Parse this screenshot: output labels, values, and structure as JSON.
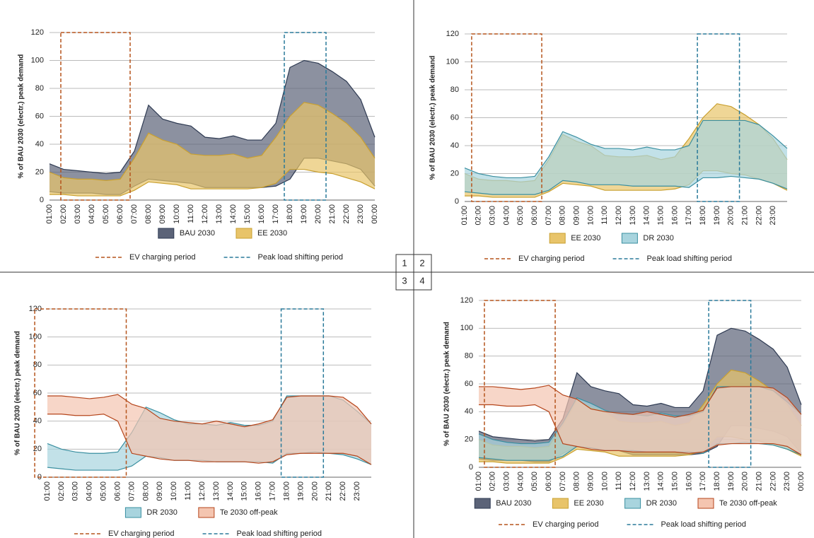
{
  "panel_labels": [
    "1",
    "2",
    "3",
    "4"
  ],
  "chart_data": [
    {
      "type": "area",
      "y_label": "% of BAU 2030 (electr.) peak demand",
      "categories": [
        "01:00",
        "02:00",
        "03:00",
        "04:00",
        "05:00",
        "06:00",
        "07:00",
        "08:00",
        "09:00",
        "10:00",
        "11:00",
        "12:00",
        "13:00",
        "14:00",
        "15:00",
        "16:00",
        "17:00",
        "18:00",
        "19:00",
        "20:00",
        "21:00",
        "22:00",
        "23:00",
        "00:00"
      ],
      "ylim": [
        0,
        120
      ],
      "yticks": [
        0,
        20,
        40,
        60,
        80,
        100,
        120
      ],
      "grid": true,
      "series": [
        {
          "name": "BAU 2030",
          "color": "#5b6378",
          "line_color": "#2e3a52",
          "values": [
            26,
            22,
            21,
            20,
            19,
            20,
            35,
            68,
            58,
            55,
            53,
            45,
            44,
            46,
            43,
            43,
            55,
            95,
            100,
            98,
            92,
            85,
            72,
            45
          ],
          "lower": [
            6,
            5,
            5,
            5,
            4,
            4,
            10,
            15,
            14,
            13,
            12,
            9,
            9,
            9,
            9,
            9,
            10,
            15,
            30,
            30,
            28,
            26,
            22,
            10
          ]
        },
        {
          "name": "EE 2030",
          "color": "#e8c46a",
          "line_color": "#c9a030",
          "values": [
            20,
            16,
            15,
            15,
            14,
            15,
            30,
            48,
            43,
            40,
            33,
            32,
            32,
            33,
            30,
            32,
            45,
            60,
            70,
            68,
            62,
            55,
            45,
            30
          ],
          "lower": [
            4,
            4,
            3,
            3,
            3,
            3,
            7,
            13,
            12,
            11,
            8,
            8,
            8,
            8,
            8,
            9,
            12,
            22,
            22,
            20,
            19,
            16,
            13,
            8
          ]
        }
      ],
      "periods": [
        {
          "name": "EV charging period",
          "color": "#b5541c",
          "from": 0.8,
          "to": 5.7
        },
        {
          "name": "Peak load shifting period",
          "color": "#2a7a9a",
          "from": 16.6,
          "to": 19.55
        }
      ]
    },
    {
      "type": "area",
      "y_label": "% of BAU 2030 (electr.) peak demand",
      "categories": [
        "01:00",
        "02:00",
        "03:00",
        "04:00",
        "05:00",
        "06:00",
        "07:00",
        "08:00",
        "09:00",
        "10:00",
        "11:00",
        "12:00",
        "13:00",
        "14:00",
        "15:00",
        "16:00",
        "17:00",
        "18:00",
        "19:00",
        "20:00",
        "21:00",
        "22:00",
        "23:00",
        null
      ],
      "ylim": [
        0,
        120
      ],
      "yticks": [
        0,
        20,
        40,
        60,
        80,
        100,
        120
      ],
      "grid": true,
      "series": [
        {
          "name": "EE 2030",
          "color": "#e8c46a",
          "line_color": "#c9a030",
          "values": [
            20,
            16,
            15,
            15,
            14,
            15,
            30,
            48,
            43,
            40,
            33,
            32,
            32,
            33,
            30,
            32,
            45,
            60,
            70,
            68,
            62,
            55,
            45,
            30
          ],
          "lower": [
            4,
            4,
            3,
            3,
            3,
            3,
            7,
            13,
            12,
            11,
            8,
            8,
            8,
            8,
            8,
            9,
            12,
            22,
            22,
            20,
            19,
            16,
            13,
            8
          ]
        },
        {
          "name": "DR 2030",
          "color": "#a8d4de",
          "line_color": "#3a8fa0",
          "values": [
            24,
            20,
            18,
            17,
            17,
            18,
            32,
            50,
            46,
            41,
            38,
            38,
            37,
            39,
            37,
            37,
            40,
            58,
            58,
            58,
            58,
            55,
            47,
            38
          ],
          "lower": [
            7,
            6,
            5,
            5,
            5,
            5,
            8,
            15,
            14,
            12,
            12,
            12,
            11,
            11,
            11,
            11,
            10,
            17,
            17,
            18,
            17,
            16,
            13,
            9
          ]
        }
      ],
      "periods": [
        {
          "name": "EV charging period",
          "color": "#b5541c",
          "from": 0.5,
          "to": 5.5
        },
        {
          "name": "Peak load shifting period",
          "color": "#2a7a9a",
          "from": 16.6,
          "to": 19.6
        }
      ]
    },
    {
      "type": "area",
      "y_label": "% of BAU 2030 (electr.) peak demand",
      "categories": [
        "01:00",
        "02:00",
        "03:00",
        "04:00",
        "05:00",
        "06:00",
        "07:00",
        "08:00",
        "09:00",
        "10:00",
        "11:00",
        "12:00",
        "13:00",
        "14:00",
        "15:00",
        "16:00",
        "17:00",
        "18:00",
        "19:00",
        "20:00",
        "21:00",
        "22:00",
        "23:00",
        null
      ],
      "ylim": [
        0,
        120
      ],
      "yticks": [
        0,
        20,
        40,
        60,
        80,
        100,
        120
      ],
      "grid": true,
      "series": [
        {
          "name": "DR 2030",
          "color": "#a8d4de",
          "line_color": "#3a8fa0",
          "values": [
            24,
            20,
            18,
            17,
            17,
            18,
            32,
            50,
            46,
            41,
            38,
            38,
            37,
            39,
            37,
            37,
            40,
            58,
            58,
            58,
            58,
            55,
            47,
            38
          ],
          "lower": [
            7,
            6,
            5,
            5,
            5,
            5,
            8,
            15,
            14,
            12,
            12,
            12,
            11,
            11,
            11,
            11,
            10,
            17,
            17,
            18,
            17,
            16,
            13,
            9
          ]
        },
        {
          "name": "Te 2030 off-peak",
          "color": "#f4c5b0",
          "line_color": "#b5451b",
          "values": [
            58,
            58,
            57,
            56,
            57,
            59,
            52,
            49,
            42,
            40,
            39,
            38,
            40,
            38,
            36,
            38,
            41,
            57,
            58,
            58,
            58,
            57,
            50,
            38
          ],
          "lower": [
            45,
            45,
            44,
            44,
            45,
            40,
            17,
            15,
            13,
            12,
            12,
            11,
            11,
            11,
            11,
            10,
            11,
            16,
            17,
            17,
            17,
            17,
            15,
            9
          ]
        }
      ],
      "periods": [
        {
          "name": "EV charging period",
          "color": "#b5541c",
          "from": -0.9,
          "to": 5.6
        },
        {
          "name": "Peak load shifting period",
          "color": "#2a7a9a",
          "from": 16.6,
          "to": 19.6
        }
      ]
    },
    {
      "type": "area",
      "y_label": "% of BAU 2030 (electr.) peak demand",
      "categories": [
        "01:00",
        "02:00",
        "03:00",
        "04:00",
        "05:00",
        "06:00",
        "07:00",
        "08:00",
        "09:00",
        "10:00",
        "11:00",
        "12:00",
        "13:00",
        "14:00",
        "15:00",
        "16:00",
        "17:00",
        "18:00",
        "19:00",
        "20:00",
        "21:00",
        "22:00",
        "23:00",
        "00:00"
      ],
      "ylim": [
        0,
        120
      ],
      "yticks": [
        0,
        20,
        40,
        60,
        80,
        100,
        120
      ],
      "grid": true,
      "series": [
        {
          "name": "BAU 2030",
          "color": "#5b6378",
          "line_color": "#2e3a52",
          "values": [
            26,
            22,
            21,
            20,
            19,
            20,
            35,
            68,
            58,
            55,
            53,
            45,
            44,
            46,
            43,
            43,
            55,
            95,
            100,
            98,
            92,
            85,
            72,
            45
          ],
          "lower": [
            6,
            5,
            5,
            5,
            4,
            4,
            10,
            15,
            14,
            13,
            12,
            9,
            9,
            9,
            9,
            9,
            10,
            15,
            30,
            30,
            28,
            26,
            22,
            10
          ]
        },
        {
          "name": "EE 2030",
          "color": "#e8c46a",
          "line_color": "#c9a030",
          "values": [
            20,
            16,
            15,
            15,
            14,
            15,
            30,
            48,
            43,
            40,
            33,
            32,
            32,
            33,
            30,
            32,
            45,
            60,
            70,
            68,
            62,
            55,
            45,
            30
          ],
          "lower": [
            4,
            4,
            3,
            3,
            3,
            3,
            7,
            13,
            12,
            11,
            8,
            8,
            8,
            8,
            8,
            9,
            12,
            22,
            22,
            20,
            19,
            16,
            13,
            8
          ]
        },
        {
          "name": "DR 2030",
          "color": "#a8d4de",
          "line_color": "#3a8fa0",
          "values": [
            24,
            20,
            18,
            17,
            17,
            18,
            32,
            50,
            46,
            41,
            38,
            38,
            37,
            39,
            37,
            37,
            40,
            58,
            58,
            58,
            58,
            55,
            47,
            38
          ],
          "lower": [
            7,
            6,
            5,
            5,
            5,
            5,
            8,
            15,
            14,
            12,
            12,
            12,
            11,
            11,
            11,
            11,
            10,
            17,
            17,
            18,
            17,
            16,
            13,
            9
          ]
        },
        {
          "name": "Te 2030 off-peak",
          "color": "#f4c5b0",
          "line_color": "#b5451b",
          "values": [
            58,
            58,
            57,
            56,
            57,
            59,
            52,
            49,
            42,
            40,
            39,
            38,
            40,
            38,
            36,
            38,
            41,
            57,
            58,
            58,
            58,
            57,
            50,
            38
          ],
          "lower": [
            45,
            45,
            44,
            44,
            45,
            40,
            17,
            15,
            13,
            12,
            12,
            11,
            11,
            11,
            11,
            10,
            11,
            16,
            17,
            17,
            17,
            17,
            15,
            9
          ]
        }
      ],
      "periods": [
        {
          "name": "EV charging period",
          "color": "#b5541c",
          "from": 0.4,
          "to": 5.45
        },
        {
          "name": "Peak load shifting period",
          "color": "#2a7a9a",
          "from": 16.4,
          "to": 19.4
        }
      ]
    }
  ]
}
